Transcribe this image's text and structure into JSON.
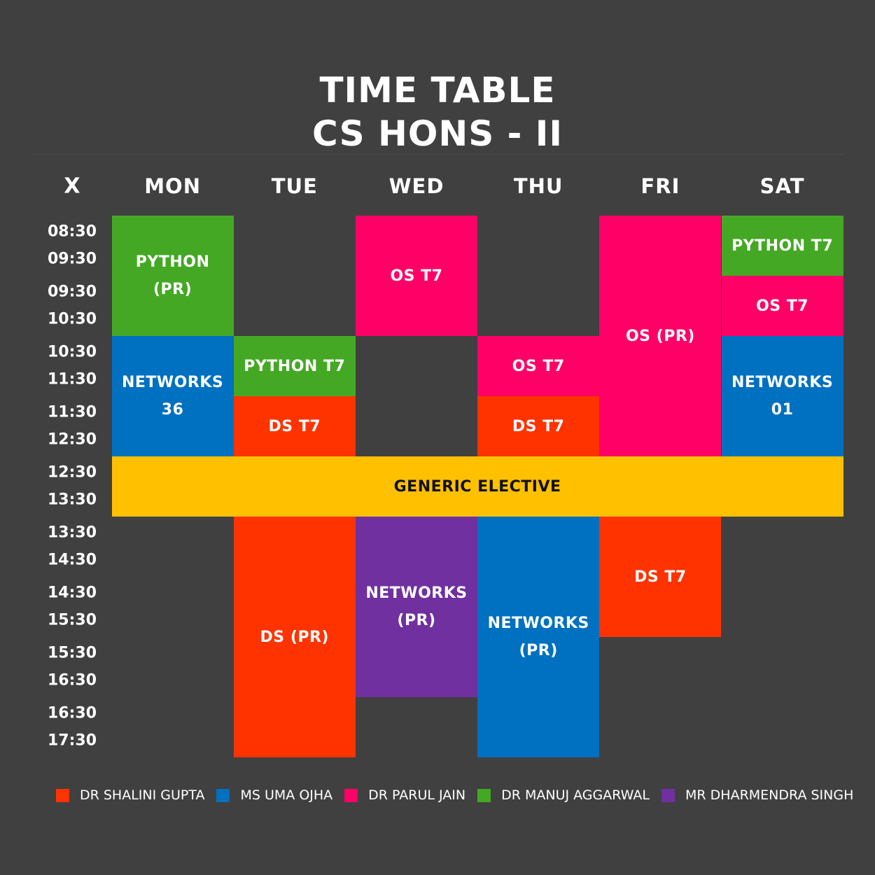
{
  "title": {
    "line1": "TIME TABLE",
    "line2": "CS HONS - II"
  },
  "corner": "X",
  "days": [
    "MON",
    "TUE",
    "WED",
    "THU",
    "FRI",
    "SAT"
  ],
  "slots": [
    {
      "start": "08:30",
      "end": "09:30"
    },
    {
      "start": "09:30",
      "end": "10:30"
    },
    {
      "start": "10:30",
      "end": "11:30"
    },
    {
      "start": "11:30",
      "end": "12:30"
    },
    {
      "start": "12:30",
      "end": "13:30"
    },
    {
      "start": "13:30",
      "end": "14:30"
    },
    {
      "start": "14:30",
      "end": "15:30"
    },
    {
      "start": "15:30",
      "end": "16:30"
    },
    {
      "start": "16:30",
      "end": "17:30"
    }
  ],
  "colors": {
    "shalini": "#FF3300",
    "uma": "#0070C0",
    "parul": "#FF0066",
    "manuj": "#44A824",
    "dharmendra": "#7030A0",
    "elective": "#FFC000"
  },
  "blocks": [
    {
      "day": 0,
      "start": 0,
      "span": 2,
      "label": "PYTHON\n(PR)",
      "teacher": "manuj"
    },
    {
      "day": 0,
      "start": 2,
      "span": 2,
      "label": "NETWORKS\n36",
      "teacher": "uma"
    },
    {
      "day": 1,
      "start": 2,
      "span": 1,
      "label": "PYTHON T7",
      "teacher": "manuj"
    },
    {
      "day": 1,
      "start": 3,
      "span": 1,
      "label": "DS T7",
      "teacher": "shalini"
    },
    {
      "day": 1,
      "start": 5,
      "span": 4,
      "label": "DS (PR)",
      "teacher": "shalini"
    },
    {
      "day": 2,
      "start": 0,
      "span": 2,
      "label": "OS T7",
      "teacher": "parul"
    },
    {
      "day": 2,
      "start": 5,
      "span": 3,
      "label": "NETWORKS\n(PR)",
      "teacher": "dharmendra"
    },
    {
      "day": 3,
      "start": 2,
      "span": 1,
      "label": "OS T7",
      "teacher": "parul"
    },
    {
      "day": 3,
      "start": 3,
      "span": 1,
      "label": "DS T7",
      "teacher": "shalini"
    },
    {
      "day": 3,
      "start": 5,
      "span": 4,
      "label": "NETWORKS\n(PR)",
      "teacher": "uma"
    },
    {
      "day": 4,
      "start": 0,
      "span": 4,
      "label": "OS (PR)",
      "teacher": "parul"
    },
    {
      "day": 4,
      "start": 5,
      "span": 2,
      "label": "DS T7",
      "teacher": "shalini"
    },
    {
      "day": 5,
      "start": 0,
      "span": 1,
      "label": "PYTHON T7",
      "teacher": "manuj"
    },
    {
      "day": 5,
      "start": 1,
      "span": 1,
      "label": "OS T7",
      "teacher": "parul"
    },
    {
      "day": 5,
      "start": 2,
      "span": 2,
      "label": "NETWORKS\n01",
      "teacher": "uma"
    }
  ],
  "elective": {
    "label": "GENERIC ELECTIVE",
    "start": 4,
    "span": 1,
    "text_color": "#111111"
  },
  "legend": [
    {
      "name": "DR SHALINI GUPTA",
      "teacher": "shalini"
    },
    {
      "name": "MS UMA OJHA",
      "teacher": "uma"
    },
    {
      "name": "DR PARUL JAIN",
      "teacher": "parul"
    },
    {
      "name": "DR MANUJ AGGARWAL",
      "teacher": "manuj"
    },
    {
      "name": "MR DHARMENDRA SINGH",
      "teacher": "dharmendra"
    }
  ]
}
